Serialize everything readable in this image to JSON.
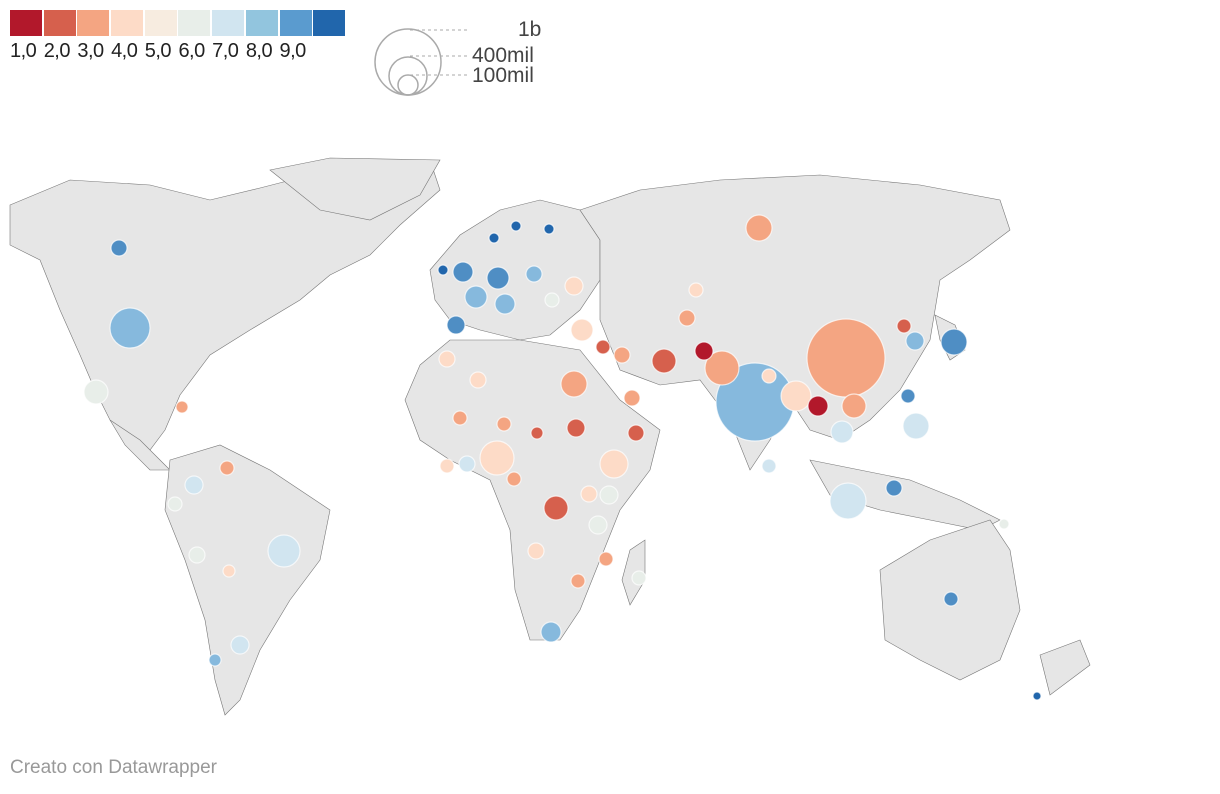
{
  "legend": {
    "ticks": [
      "1,0",
      "2,0",
      "3,0",
      "4,0",
      "5,0",
      "6,0",
      "7,0",
      "8,0",
      "9,0"
    ],
    "colors": [
      "#b2182b",
      "#d6604d",
      "#f4a582",
      "#fddbc7",
      "#f7ece0",
      "#e8eee9",
      "#d1e5f0",
      "#92c5de",
      "#5a9bcf",
      "#2166ac"
    ],
    "size_labels": [
      "1b",
      "400mil",
      "100mil"
    ]
  },
  "map": {
    "land_color": "#e6e6e6",
    "border_color": "#555555",
    "bubbles": [
      {
        "place": "Canada",
        "color": "#4f8ec4",
        "size": "xs"
      },
      {
        "place": "United States",
        "color": "#86b9dd",
        "size": "l"
      },
      {
        "place": "Mexico",
        "color": "#e8eee9",
        "size": "s"
      },
      {
        "place": "Brazil",
        "color": "#d1e5f0",
        "size": "m"
      },
      {
        "place": "Colombia",
        "color": "#d1e5f0",
        "size": "xs"
      },
      {
        "place": "Argentina",
        "color": "#d1e5f0",
        "size": "xs"
      },
      {
        "place": "Russia",
        "color": "#f4a582",
        "size": "s"
      },
      {
        "place": "China",
        "color": "#f4a582",
        "size": "xl"
      },
      {
        "place": "India",
        "color": "#86b9dd",
        "size": "xl"
      },
      {
        "place": "Japan",
        "color": "#4f8ec4",
        "size": "s"
      },
      {
        "place": "Indonesia",
        "color": "#d1e5f0",
        "size": "m"
      },
      {
        "place": "Pakistan",
        "color": "#f4a582",
        "size": "m"
      },
      {
        "place": "Bangladesh",
        "color": "#fddbc7",
        "size": "s"
      },
      {
        "place": "Nigeria",
        "color": "#fddbc7",
        "size": "m"
      },
      {
        "place": "Ethiopia",
        "color": "#fddbc7",
        "size": "s"
      },
      {
        "place": "DR Congo",
        "color": "#d6604d",
        "size": "s"
      },
      {
        "place": "Egypt",
        "color": "#f4a582",
        "size": "s"
      },
      {
        "place": "Iran",
        "color": "#d6604d",
        "size": "s"
      },
      {
        "place": "Turkey",
        "color": "#fddbc7",
        "size": "s"
      },
      {
        "place": "Germany",
        "color": "#4f8ec4",
        "size": "s"
      },
      {
        "place": "France",
        "color": "#86b9dd",
        "size": "s"
      },
      {
        "place": "United Kingdom",
        "color": "#4f8ec4",
        "size": "s"
      },
      {
        "place": "Spain",
        "color": "#4f8ec4",
        "size": "xs"
      },
      {
        "place": "Italy",
        "color": "#86b9dd",
        "size": "s"
      },
      {
        "place": "Philippines",
        "color": "#d1e5f0",
        "size": "s"
      },
      {
        "place": "Vietnam",
        "color": "#f4a582",
        "size": "s"
      },
      {
        "place": "Thailand",
        "color": "#d1e5f0",
        "size": "s"
      },
      {
        "place": "Myanmar",
        "color": "#b2182b",
        "size": "xs"
      },
      {
        "place": "Afghanistan",
        "color": "#b2182b",
        "size": "xs"
      },
      {
        "place": "South Africa",
        "color": "#86b9dd",
        "size": "xs"
      },
      {
        "place": "Australia",
        "color": "#4f8ec4",
        "size": "xs"
      },
      {
        "place": "New Zealand",
        "color": "#2166ac",
        "size": "xxs"
      }
    ]
  },
  "credit": "Creato con Datawrapper"
}
